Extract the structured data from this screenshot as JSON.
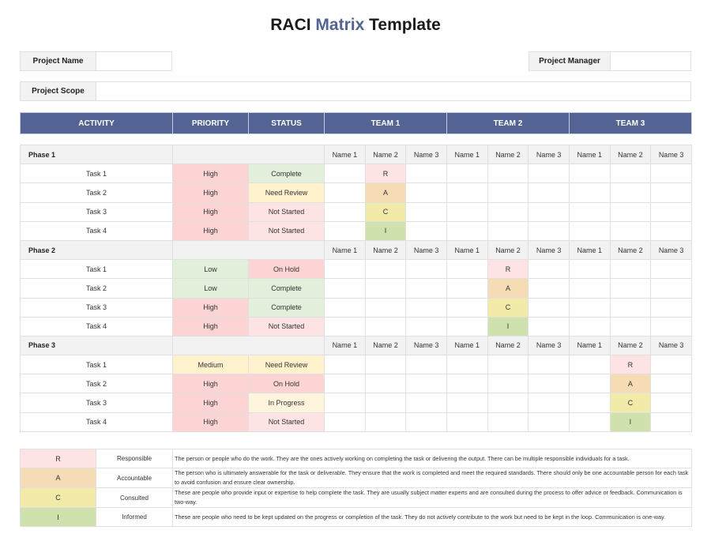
{
  "title": {
    "part1": "RACI ",
    "part2": "Matrix",
    "part3": " Template"
  },
  "form": {
    "project_name_label": "Project Name",
    "project_name_value": "",
    "project_manager_label": "Project Manager",
    "project_manager_value": "",
    "project_scope_label": "Project Scope",
    "project_scope_value": ""
  },
  "header": {
    "activity": "ACTIVITY",
    "priority": "PRIORITY",
    "status": "STATUS",
    "teams": [
      "TEAM 1",
      "TEAM 2",
      "TEAM 3"
    ]
  },
  "member_names": [
    "Name 1",
    "Name 2",
    "Name 3",
    "Name 1",
    "Name 2",
    "Name 3",
    "Name 1",
    "Name 2",
    "Name 3"
  ],
  "colors": {
    "header": "#536394",
    "High": "#fdd4d4",
    "Low": "#e2efda",
    "Medium": "#fff2cc",
    "Complete": "#e2efda",
    "Need Review": "#fff2cc",
    "Not Started": "#fde3e3",
    "On Hold": "#fdd4d4",
    "In Progress": "#fff5dc",
    "R": "#fde3e3",
    "A": "#f6dcb4",
    "C": "#f2eaa8",
    "I": "#cfe2ae"
  },
  "phases": [
    {
      "name": "Phase 1",
      "tasks": [
        {
          "name": "Task 1",
          "priority": "High",
          "status": "Complete",
          "raci": [
            "",
            "R",
            "",
            "",
            "",
            "",
            "",
            "",
            ""
          ]
        },
        {
          "name": "Task 2",
          "priority": "High",
          "status": "Need Review",
          "raci": [
            "",
            "A",
            "",
            "",
            "",
            "",
            "",
            "",
            ""
          ]
        },
        {
          "name": "Task 3",
          "priority": "High",
          "status": "Not Started",
          "raci": [
            "",
            "C",
            "",
            "",
            "",
            "",
            "",
            "",
            ""
          ]
        },
        {
          "name": "Task 4",
          "priority": "High",
          "status": "Not Started",
          "raci": [
            "",
            "I",
            "",
            "",
            "",
            "",
            "",
            "",
            ""
          ]
        }
      ]
    },
    {
      "name": "Phase 2",
      "tasks": [
        {
          "name": "Task 1",
          "priority": "Low",
          "status": "On Hold",
          "raci": [
            "",
            "",
            "",
            "",
            "R",
            "",
            "",
            "",
            ""
          ]
        },
        {
          "name": "Task 2",
          "priority": "Low",
          "status": "Complete",
          "raci": [
            "",
            "",
            "",
            "",
            "A",
            "",
            "",
            "",
            ""
          ]
        },
        {
          "name": "Task 3",
          "priority": "High",
          "status": "Complete",
          "raci": [
            "",
            "",
            "",
            "",
            "C",
            "",
            "",
            "",
            ""
          ]
        },
        {
          "name": "Task 4",
          "priority": "High",
          "status": "Not Started",
          "raci": [
            "",
            "",
            "",
            "",
            "I",
            "",
            "",
            "",
            ""
          ]
        }
      ]
    },
    {
      "name": "Phase 3",
      "tasks": [
        {
          "name": "Task 1",
          "priority": "Medium",
          "status": "Need Review",
          "raci": [
            "",
            "",
            "",
            "",
            "",
            "",
            "",
            "R",
            ""
          ]
        },
        {
          "name": "Task 2",
          "priority": "High",
          "status": "On Hold",
          "raci": [
            "",
            "",
            "",
            "",
            "",
            "",
            "",
            "A",
            ""
          ]
        },
        {
          "name": "Task 3",
          "priority": "High",
          "status": "In Progress",
          "raci": [
            "",
            "",
            "",
            "",
            "",
            "",
            "",
            "C",
            ""
          ]
        },
        {
          "name": "Task 4",
          "priority": "High",
          "status": "Not Started",
          "raci": [
            "",
            "",
            "",
            "",
            "",
            "",
            "",
            "I",
            ""
          ]
        }
      ]
    }
  ],
  "legend": [
    {
      "key": "R",
      "label": "Responsible",
      "desc": "The person or people who do the work. They are the ones actively working on completing the task or delivering the output. There can be multiple responsible individuals for a task."
    },
    {
      "key": "A",
      "label": "Accountable",
      "desc": "The person who is ultimately answerable for the task or deliverable. They ensure that the work is completed and meet the required standards. There should only be one accountable person for each task to avoid confusion and ensure clear ownership."
    },
    {
      "key": "C",
      "label": "Consulted",
      "desc": "These are people who provide input or expertise to help complete the task. They are usually subject matter experts and are consulted during the process to offer advice or feedback. Communication is two-way."
    },
    {
      "key": "I",
      "label": "Informed",
      "desc": "These are people who need to be kept updated on the progress or completion of the task. They do not actively contribute to the work but need to be kept in the loop. Communication is one-way."
    }
  ]
}
